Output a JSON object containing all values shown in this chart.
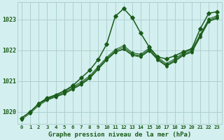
{
  "title": "Graphe pression niveau de la mer (hPa)",
  "bg_color": "#d4efef",
  "grid_color": "#a8cccc",
  "line_color": "#1a5c1a",
  "x_values": [
    0,
    1,
    2,
    3,
    4,
    5,
    6,
    7,
    8,
    9,
    10,
    11,
    12,
    13,
    14,
    15,
    16,
    17,
    18,
    19,
    20,
    21,
    22,
    23
  ],
  "series": [
    [
      1019.8,
      1020.0,
      1020.25,
      1020.4,
      1020.5,
      1020.6,
      1020.75,
      1020.9,
      1021.1,
      1021.4,
      1021.7,
      1021.95,
      1022.05,
      1021.85,
      1021.8,
      1022.0,
      1021.7,
      1021.5,
      1021.65,
      1021.85,
      1021.95,
      1022.45,
      1022.95,
      1023.05
    ],
    [
      1019.8,
      1020.0,
      1020.25,
      1020.42,
      1020.52,
      1020.63,
      1020.78,
      1020.93,
      1021.13,
      1021.43,
      1021.73,
      1021.98,
      1022.1,
      1021.88,
      1021.83,
      1022.03,
      1021.73,
      1021.53,
      1021.68,
      1021.88,
      1021.98,
      1022.48,
      1022.98,
      1023.08
    ],
    [
      1019.8,
      1020.0,
      1020.28,
      1020.45,
      1020.55,
      1020.67,
      1020.82,
      1020.97,
      1021.17,
      1021.47,
      1021.77,
      1022.02,
      1022.15,
      1021.92,
      1021.87,
      1022.07,
      1021.77,
      1021.57,
      1021.72,
      1021.92,
      1022.02,
      1022.52,
      1023.02,
      1023.12
    ],
    [
      1019.75,
      1019.95,
      1020.2,
      1020.38,
      1020.48,
      1020.58,
      1020.73,
      1020.88,
      1021.08,
      1021.38,
      1021.68,
      1021.93,
      1022.03,
      1021.83,
      1021.78,
      1021.98,
      1021.68,
      1021.48,
      1021.63,
      1021.83,
      1021.93,
      1022.43,
      1022.93,
      1023.03
    ]
  ],
  "series0": [
    1019.8,
    1020.0,
    1020.25,
    1020.45,
    1020.55,
    1020.68,
    1020.85,
    1021.1,
    1021.35,
    1021.7,
    1022.2,
    1023.1,
    1023.35,
    1023.05,
    1022.55,
    1022.1,
    1021.78,
    1021.72,
    1021.82,
    1021.95,
    1022.05,
    1022.7,
    1023.2,
    1023.25
  ],
  "ylim": [
    1019.6,
    1023.55
  ],
  "yticks": [
    1020,
    1021,
    1022,
    1023
  ],
  "xlim": [
    -0.5,
    23.5
  ],
  "xticks": [
    0,
    1,
    2,
    3,
    4,
    5,
    6,
    7,
    8,
    9,
    10,
    11,
    12,
    13,
    14,
    15,
    16,
    17,
    18,
    19,
    20,
    21,
    22,
    23
  ]
}
